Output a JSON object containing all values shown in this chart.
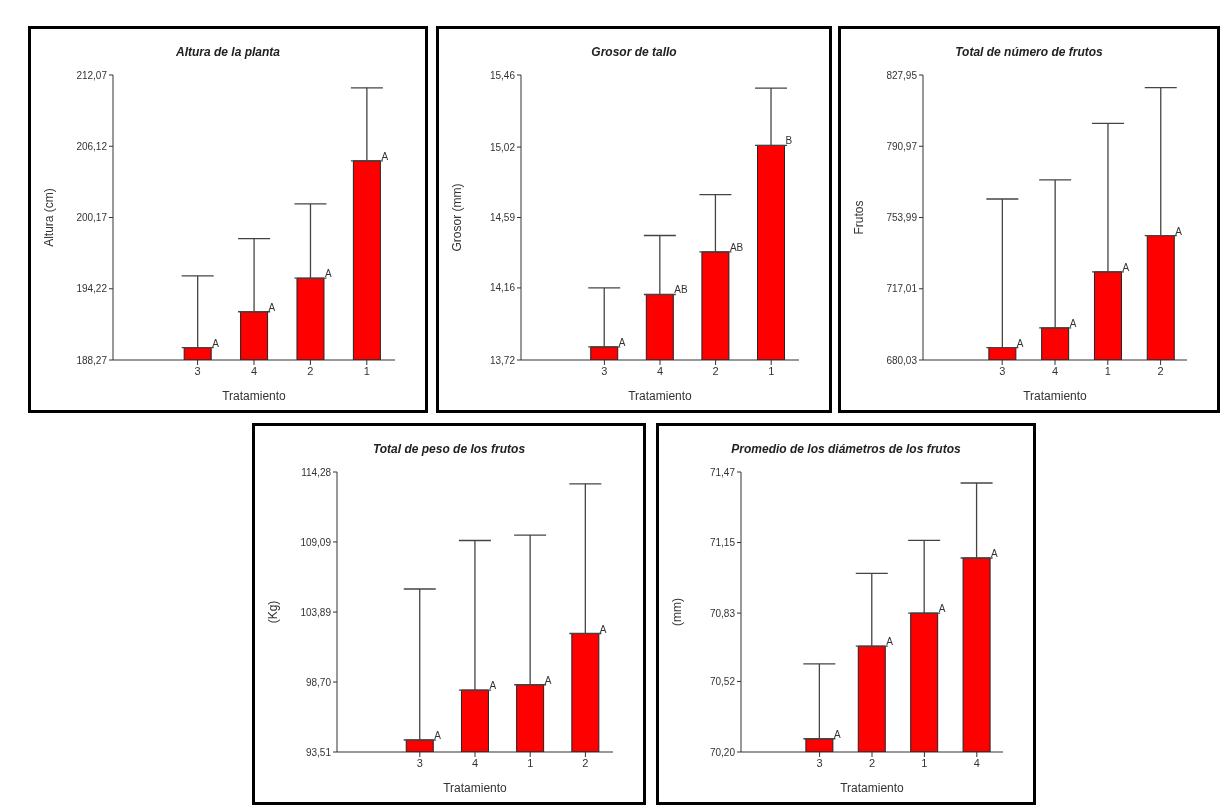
{
  "chart_data": [
    {
      "type": "bar",
      "title": "Altura de la planta",
      "xlabel": "Tratamiento",
      "ylabel": "Altura (cm)",
      "categories": [
        "3",
        "4",
        "2",
        "1"
      ],
      "values": [
        189.3,
        192.3,
        195.1,
        204.9
      ],
      "errors": [
        [
          189.3,
          195.3
        ],
        [
          192.3,
          198.4
        ],
        [
          195.1,
          201.3
        ],
        [
          204.9,
          211.0
        ]
      ],
      "value_labels": [
        "A",
        "A",
        "A",
        "A"
      ],
      "color": "#ff0000",
      "ylim": [
        188.27,
        212.07
      ],
      "yticks": [
        {
          "value": 188.27,
          "label": "188,27"
        },
        {
          "value": 194.22,
          "label": "194,22"
        },
        {
          "value": 200.17,
          "label": "200,17"
        },
        {
          "value": 206.12,
          "label": "206,12"
        },
        {
          "value": 212.07,
          "label": "212,07"
        }
      ],
      "grid": false
    },
    {
      "type": "bar",
      "title": "Grosor de tallo",
      "xlabel": "Tratamiento",
      "ylabel": "Grosor (mm)",
      "categories": [
        "3",
        "4",
        "2",
        "1"
      ],
      "values": [
        13.8,
        14.12,
        14.38,
        15.03
      ],
      "errors": [
        [
          13.8,
          14.16
        ],
        [
          14.12,
          14.48
        ],
        [
          14.38,
          14.73
        ],
        [
          15.03,
          15.38
        ]
      ],
      "value_labels": [
        "A",
        "AB",
        "AB",
        "B"
      ],
      "color": "#ff0000",
      "ylim": [
        13.72,
        15.46
      ],
      "yticks": [
        {
          "value": 13.72,
          "label": "13,72"
        },
        {
          "value": 14.16,
          "label": "14,16"
        },
        {
          "value": 14.59,
          "label": "14,59"
        },
        {
          "value": 15.02,
          "label": "15,02"
        },
        {
          "value": 15.46,
          "label": "15,46"
        }
      ],
      "grid": false
    },
    {
      "type": "bar",
      "title": "Total de número de frutos",
      "xlabel": "Tratamiento",
      "ylabel": "Frutos",
      "categories": [
        "3",
        "4",
        "1",
        "2"
      ],
      "values": [
        686.5,
        696.7,
        725.8,
        744.6
      ],
      "errors": [
        [
          686.5,
          763.6
        ],
        [
          696.7,
          773.5
        ],
        [
          725.8,
          802.8
        ],
        [
          744.6,
          821.4
        ]
      ],
      "value_labels": [
        "A",
        "A",
        "A",
        "A"
      ],
      "color": "#ff0000",
      "ylim": [
        680.03,
        827.95
      ],
      "yticks": [
        {
          "value": 680.03,
          "label": "680,03"
        },
        {
          "value": 717.01,
          "label": "717,01"
        },
        {
          "value": 753.99,
          "label": "753,99"
        },
        {
          "value": 790.97,
          "label": "790,97"
        },
        {
          "value": 827.95,
          "label": "827,95"
        }
      ],
      "grid": false
    },
    {
      "type": "bar",
      "title": "Total de peso de los frutos",
      "xlabel": "Tratamiento",
      "ylabel": "(Kg)",
      "categories": [
        "3",
        "4",
        "1",
        "2"
      ],
      "values": [
        94.4,
        98.1,
        98.5,
        102.3
      ],
      "errors": [
        [
          94.4,
          105.6
        ],
        [
          98.1,
          109.2
        ],
        [
          98.5,
          109.6
        ],
        [
          102.3,
          113.4
        ]
      ],
      "value_labels": [
        "A",
        "A",
        "A",
        "A"
      ],
      "color": "#ff0000",
      "ylim": [
        93.51,
        114.28
      ],
      "yticks": [
        {
          "value": 93.51,
          "label": "93,51"
        },
        {
          "value": 98.7,
          "label": "98,70"
        },
        {
          "value": 103.89,
          "label": "103,89"
        },
        {
          "value": 109.09,
          "label": "109,09"
        },
        {
          "value": 114.28,
          "label": "114,28"
        }
      ],
      "grid": false
    },
    {
      "type": "bar",
      "title": "Promedio de los diámetros de los frutos",
      "xlabel": "Tratamiento",
      "ylabel": "(mm)",
      "categories": [
        "3",
        "2",
        "1",
        "4"
      ],
      "values": [
        70.26,
        70.68,
        70.83,
        71.08
      ],
      "errors": [
        [
          70.26,
          70.6
        ],
        [
          70.68,
          71.01
        ],
        [
          70.83,
          71.16
        ],
        [
          71.08,
          71.42
        ]
      ],
      "value_labels": [
        "A",
        "A",
        "A",
        "A"
      ],
      "color": "#ff0000",
      "ylim": [
        70.2,
        71.47
      ],
      "yticks": [
        {
          "value": 70.2,
          "label": "70,20"
        },
        {
          "value": 70.52,
          "label": "70,52"
        },
        {
          "value": 70.83,
          "label": "70,83"
        },
        {
          "value": 71.15,
          "label": "71,15"
        },
        {
          "value": 71.47,
          "label": "71,47"
        }
      ],
      "grid": false
    }
  ]
}
